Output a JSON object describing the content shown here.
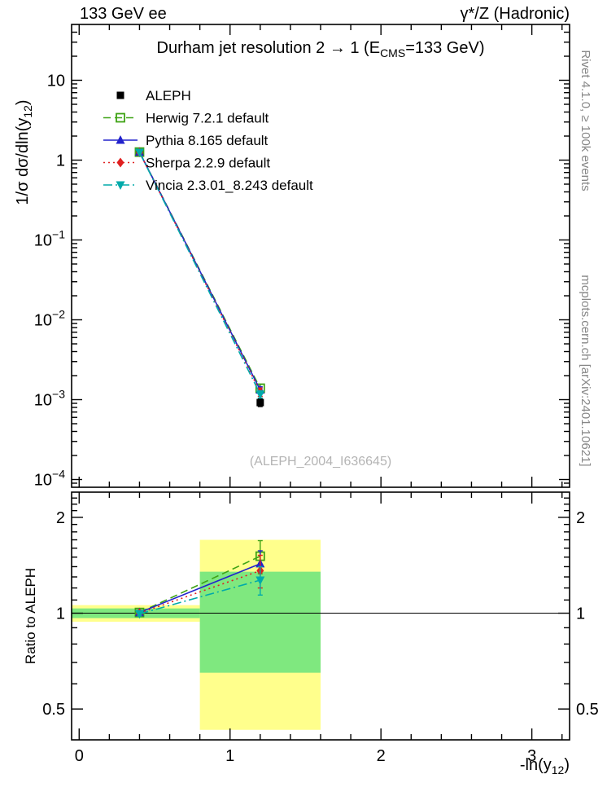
{
  "header": {
    "left": "133 GeV ee",
    "right": "γ*/Z (Hadronic)"
  },
  "side_notes": {
    "top_right": "Rivet 4.1.0, ≥ 100k events",
    "bottom_right": "mcplots.cern.ch [arXiv:2401.10621]"
  },
  "watermark": "(ALEPH_2004_I636645)",
  "chart_data": {
    "type": "line",
    "title_segments": [
      {
        "t": "Durham jet resolution 2  →  1 (E"
      },
      {
        "t": "CMS",
        "sub": true
      },
      {
        "t": "=133 GeV)"
      }
    ],
    "x": {
      "lim": [
        -0.05,
        3.25
      ],
      "major_ticks": [
        {
          "v": 0,
          "label": "0"
        },
        {
          "v": 1,
          "label": "1"
        },
        {
          "v": 2,
          "label": "2"
        },
        {
          "v": 3,
          "label": "3"
        }
      ],
      "minor_step": 0.2,
      "label_segments": [
        {
          "t": "-ln(y"
        },
        {
          "t": "12",
          "sub": true
        },
        {
          "t": ")"
        }
      ]
    },
    "main_panel": {
      "yscale": "log",
      "ylim": [
        8e-05,
        50
      ],
      "yticks": [
        {
          "v": 10,
          "label": "10"
        },
        {
          "v": 1,
          "label": "1"
        },
        {
          "v": 0.1,
          "label": "10",
          "exp": "−1"
        },
        {
          "v": 0.01,
          "label": "10",
          "exp": "−2"
        },
        {
          "v": 0.001,
          "label": "10",
          "exp": "−3"
        },
        {
          "v": 0.0001,
          "label": "10",
          "exp": "−4"
        }
      ],
      "ylabel_segments": [
        {
          "t": "1/σ  dσ/dln(y"
        },
        {
          "t": "12",
          "sub": true
        },
        {
          "t": ")"
        }
      ],
      "series": [
        {
          "name": "ALEPH",
          "color": "#000000",
          "marker": "square",
          "line": "none",
          "points": [
            {
              "x": 0.4,
              "y": 1.25,
              "ey": 0.04
            },
            {
              "x": 1.2,
              "y": 0.00092,
              "ey": 0.0001
            }
          ]
        },
        {
          "name": "Herwig 7.2.1 default",
          "color": "#3fa315",
          "marker": "open-square",
          "line": "dashed",
          "points": [
            {
              "x": 0.4,
              "y": 1.26,
              "ey": 0.02
            },
            {
              "x": 1.2,
              "y": 0.00139,
              "ey": 0.00016
            }
          ]
        },
        {
          "name": "Pythia 8.165 default",
          "color": "#2222cc",
          "marker": "triangle-up",
          "line": "solid",
          "points": [
            {
              "x": 0.4,
              "y": 1.26,
              "ey": 0.02
            },
            {
              "x": 1.2,
              "y": 0.00132,
              "ey": 0.00013
            }
          ]
        },
        {
          "name": "Sherpa 2.2.9 default",
          "color": "#e02020",
          "marker": "diamond",
          "line": "dotted",
          "points": [
            {
              "x": 0.4,
              "y": 1.25,
              "ey": 0.02
            },
            {
              "x": 1.2,
              "y": 0.00125,
              "ey": 0.00015
            }
          ]
        },
        {
          "name": "Vincia 2.3.01_8.243 default",
          "color": "#00aaaa",
          "marker": "triangle-down",
          "line": "dashdot",
          "points": [
            {
              "x": 0.4,
              "y": 1.25,
              "ey": 0.02
            },
            {
              "x": 1.2,
              "y": 0.00117,
              "ey": 0.00012
            }
          ]
        }
      ]
    },
    "ratio_panel": {
      "ylabel": "Ratio to ALEPH",
      "yscale": "log",
      "ylim": [
        0.4,
        2.4
      ],
      "yticks": [
        {
          "v": 0.5,
          "label": "0.5"
        },
        {
          "v": 1,
          "label": "1"
        },
        {
          "v": 2,
          "label": "2"
        }
      ],
      "ref_line": 1,
      "band_colors": {
        "outer": "#ffff8c",
        "inner": "#7fe87f"
      },
      "bands": [
        {
          "x0": -0.05,
          "x1": 0.8,
          "outer": [
            0.94,
            1.06
          ],
          "inner": [
            0.965,
            1.035
          ]
        },
        {
          "x0": 0.8,
          "x1": 1.6,
          "outer": [
            0.43,
            1.7
          ],
          "inner": [
            0.65,
            1.35
          ]
        }
      ],
      "series": [
        {
          "name": "Herwig 7.2.1 default",
          "color": "#3fa315",
          "marker": "open-square",
          "line": "dashed",
          "points": [
            {
              "x": 0.4,
              "y": 1.005,
              "ey": 0.015
            },
            {
              "x": 1.2,
              "y": 1.51,
              "ey": 0.18
            }
          ]
        },
        {
          "name": "Pythia 8.165 default",
          "color": "#2222cc",
          "marker": "triangle-up",
          "line": "solid",
          "points": [
            {
              "x": 0.4,
              "y": 1.005,
              "ey": 0.015
            },
            {
              "x": 1.2,
              "y": 1.43,
              "ey": 0.14
            }
          ]
        },
        {
          "name": "Sherpa 2.2.9 default",
          "color": "#e02020",
          "marker": "diamond",
          "line": "dotted",
          "points": [
            {
              "x": 0.4,
              "y": 1.0,
              "ey": 0.015
            },
            {
              "x": 1.2,
              "y": 1.36,
              "ey": 0.16
            }
          ]
        },
        {
          "name": "Vincia 2.3.01_8.243 default",
          "color": "#00aaaa",
          "marker": "triangle-down",
          "line": "dashdot",
          "points": [
            {
              "x": 0.4,
              "y": 0.995,
              "ey": 0.015
            },
            {
              "x": 1.2,
              "y": 1.27,
              "ey": 0.13
            }
          ]
        }
      ]
    }
  }
}
